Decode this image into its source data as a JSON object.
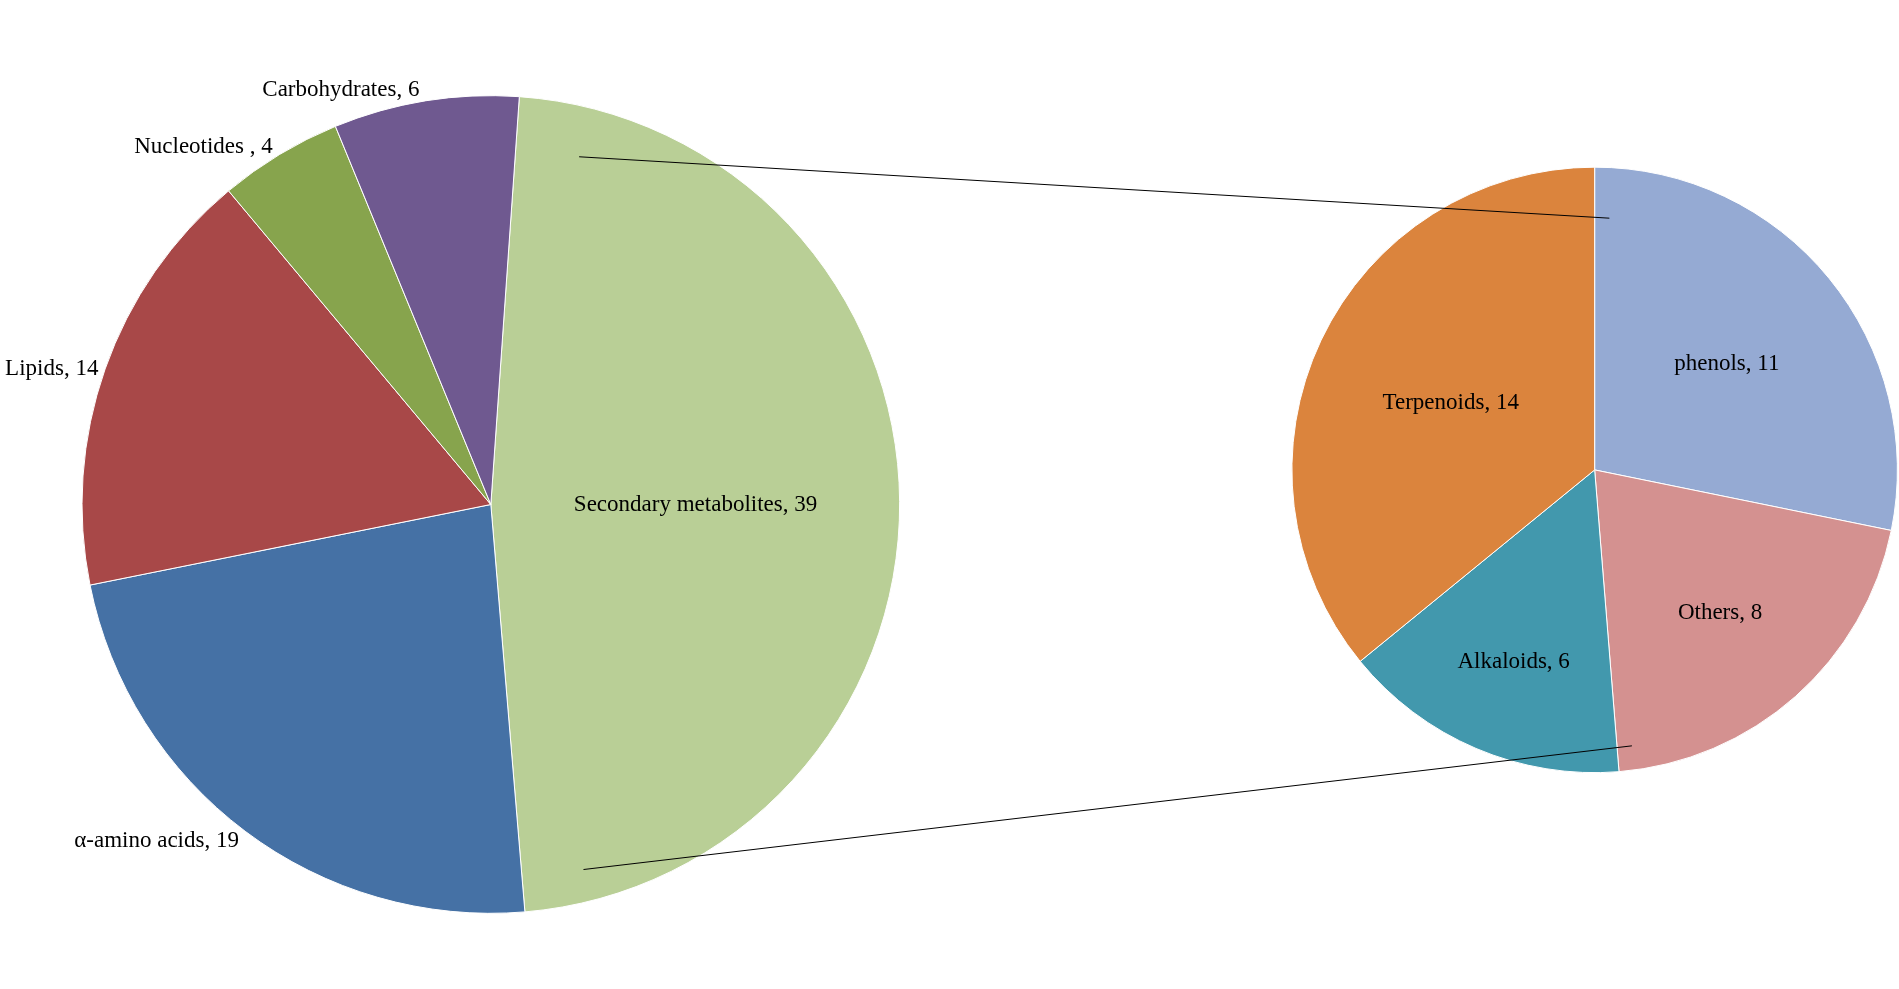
{
  "chart_data": [
    {
      "type": "pie",
      "categories": [
        "Secondary metabolites, 39",
        "α-amino acids, 19",
        "Lipids, 14",
        "Nucleotides , 4",
        "Carbohydrates, 6"
      ],
      "values": [
        39,
        19,
        14,
        4,
        6
      ],
      "colors": [
        "#b9cf96",
        "#4571a5",
        "#a84848",
        "#87a44d",
        "#6f5990"
      ],
      "legend": false
    },
    {
      "type": "pie",
      "categories": [
        "phenols, 11",
        "Others, 8",
        "Alkaloids, 6",
        "Terpenoids, 14"
      ],
      "values": [
        11,
        8,
        6,
        14
      ],
      "colors": [
        "#95aad3",
        "#d49190",
        "#4298ad",
        "#db843d"
      ],
      "legend": false
    }
  ]
}
